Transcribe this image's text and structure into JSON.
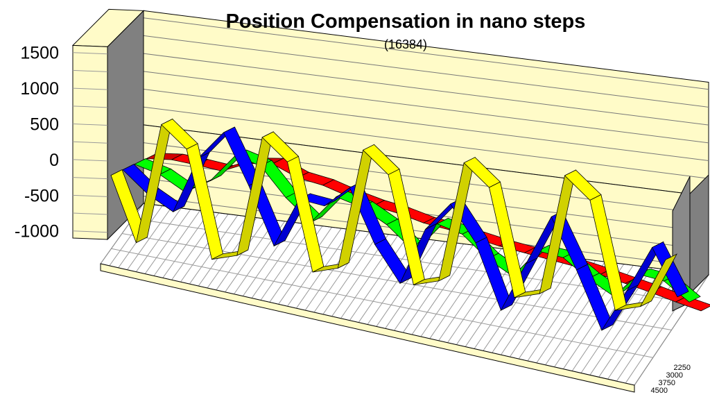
{
  "chart_data": {
    "type": "line",
    "style": "3d-ribbon",
    "title": "Position Compensation in nano steps",
    "subtitle": "(16384)",
    "xlabel": "",
    "ylabel": "",
    "ylim": [
      -1100,
      1600
    ],
    "y_ticks": [
      "1500",
      "1000",
      "500",
      "0",
      "-500",
      "-1000"
    ],
    "depth_ticks": [
      "2250",
      "3000",
      "3750",
      "4500"
    ],
    "grid": true,
    "wall_color": "#fffbc8",
    "background_color": "#ffffff",
    "series": [
      {
        "color": "#ff0000",
        "values": [
          0,
          30,
          0,
          -40,
          110,
          150,
          0,
          -60,
          -170,
          -260,
          -320,
          -410,
          -460,
          -530,
          -600,
          -650,
          -700,
          -750,
          -820,
          -900,
          -980,
          -1070,
          -1150
        ]
      },
      {
        "color": "#00ff00",
        "values": [
          0,
          -100,
          -300,
          -100,
          300,
          200,
          -200,
          -500,
          -100,
          -200,
          -400,
          -700,
          -300,
          -400,
          -700,
          -900,
          -500,
          -550,
          -800,
          -1000,
          -650,
          -700,
          -950
        ]
      },
      {
        "color": "#0000ff",
        "values": [
          0,
          -300,
          -500,
          300,
          700,
          0,
          -800,
          -100,
          -150,
          150,
          -600,
          -1100,
          -300,
          100,
          -400,
          -1300,
          -600,
          100,
          -600,
          -1400,
          -800,
          -150,
          -800
        ]
      },
      {
        "color": "#ffff00",
        "values": [
          0,
          -900,
          800,
          500,
          -1000,
          -900,
          800,
          500,
          -1000,
          -900,
          800,
          500,
          -1000,
          -900,
          800,
          500,
          -1000,
          -900,
          800,
          500,
          -1000,
          -900,
          -200
        ]
      }
    ]
  }
}
